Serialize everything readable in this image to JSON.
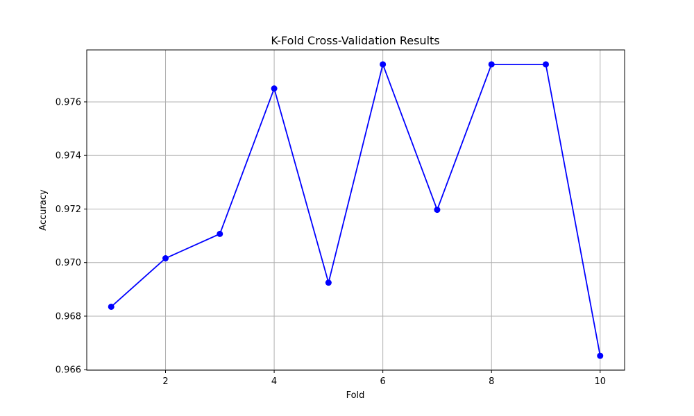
{
  "chart_data": {
    "type": "line",
    "title": "K-Fold Cross-Validation Results",
    "xlabel": "Fold",
    "ylabel": "Accuracy",
    "x": [
      1,
      2,
      3,
      4,
      5,
      6,
      7,
      8,
      9,
      10
    ],
    "series": [
      {
        "values": [
          0.96835,
          0.97016,
          0.97107,
          0.9765,
          0.96925,
          0.9774,
          0.97197,
          0.9774,
          0.9774,
          0.96652
        ]
      }
    ],
    "xlim": [
      0.55,
      10.45
    ],
    "ylim": [
      0.96598,
      0.97794
    ],
    "xticks": [
      2,
      4,
      6,
      8,
      10
    ],
    "xtick_labels": [
      "2",
      "4",
      "6",
      "8",
      "10"
    ],
    "yticks": [
      0.966,
      0.968,
      0.97,
      0.972,
      0.974,
      0.976
    ],
    "ytick_labels": [
      "0.966",
      "0.968",
      "0.970",
      "0.972",
      "0.974",
      "0.976"
    ],
    "grid": true,
    "marker": "circle",
    "colors": {
      "line": "#0000ff",
      "marker": "#0000ff",
      "grid": "#b0b0b0",
      "axes": "#000000"
    }
  }
}
